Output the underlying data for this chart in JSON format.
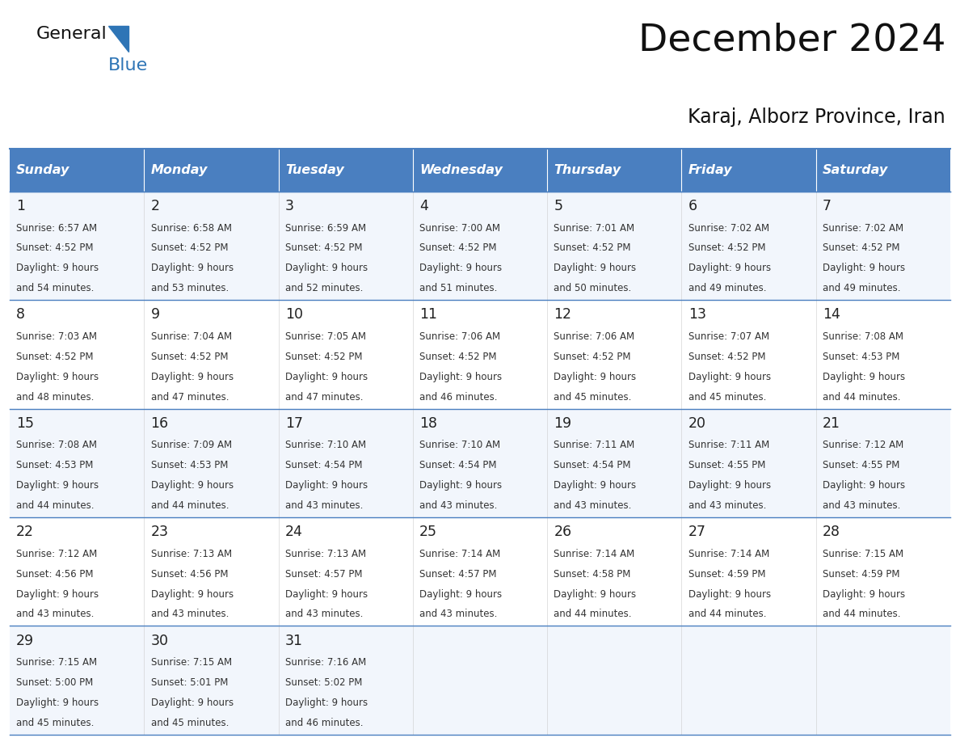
{
  "title": "December 2024",
  "subtitle": "Karaj, Alborz Province, Iran",
  "days_of_week": [
    "Sunday",
    "Monday",
    "Tuesday",
    "Wednesday",
    "Thursday",
    "Friday",
    "Saturday"
  ],
  "header_bg_color": "#4A7FC0",
  "header_text_color": "#FFFFFF",
  "cell_bg_light": "#F2F6FC",
  "cell_bg_white": "#FFFFFF",
  "date_text_color": "#222222",
  "info_text_color": "#333333",
  "border_color": "#4A7FC0",
  "title_color": "#111111",
  "subtitle_color": "#111111",
  "logo_general_color": "#111111",
  "logo_blue_color": "#2E75B6",
  "weeks": [
    [
      {
        "day": 1,
        "sunrise": "6:57 AM",
        "sunset": "4:52 PM",
        "daylight_line1": "Daylight: 9 hours",
        "daylight_line2": "and 54 minutes."
      },
      {
        "day": 2,
        "sunrise": "6:58 AM",
        "sunset": "4:52 PM",
        "daylight_line1": "Daylight: 9 hours",
        "daylight_line2": "and 53 minutes."
      },
      {
        "day": 3,
        "sunrise": "6:59 AM",
        "sunset": "4:52 PM",
        "daylight_line1": "Daylight: 9 hours",
        "daylight_line2": "and 52 minutes."
      },
      {
        "day": 4,
        "sunrise": "7:00 AM",
        "sunset": "4:52 PM",
        "daylight_line1": "Daylight: 9 hours",
        "daylight_line2": "and 51 minutes."
      },
      {
        "day": 5,
        "sunrise": "7:01 AM",
        "sunset": "4:52 PM",
        "daylight_line1": "Daylight: 9 hours",
        "daylight_line2": "and 50 minutes."
      },
      {
        "day": 6,
        "sunrise": "7:02 AM",
        "sunset": "4:52 PM",
        "daylight_line1": "Daylight: 9 hours",
        "daylight_line2": "and 49 minutes."
      },
      {
        "day": 7,
        "sunrise": "7:02 AM",
        "sunset": "4:52 PM",
        "daylight_line1": "Daylight: 9 hours",
        "daylight_line2": "and 49 minutes."
      }
    ],
    [
      {
        "day": 8,
        "sunrise": "7:03 AM",
        "sunset": "4:52 PM",
        "daylight_line1": "Daylight: 9 hours",
        "daylight_line2": "and 48 minutes."
      },
      {
        "day": 9,
        "sunrise": "7:04 AM",
        "sunset": "4:52 PM",
        "daylight_line1": "Daylight: 9 hours",
        "daylight_line2": "and 47 minutes."
      },
      {
        "day": 10,
        "sunrise": "7:05 AM",
        "sunset": "4:52 PM",
        "daylight_line1": "Daylight: 9 hours",
        "daylight_line2": "and 47 minutes."
      },
      {
        "day": 11,
        "sunrise": "7:06 AM",
        "sunset": "4:52 PM",
        "daylight_line1": "Daylight: 9 hours",
        "daylight_line2": "and 46 minutes."
      },
      {
        "day": 12,
        "sunrise": "7:06 AM",
        "sunset": "4:52 PM",
        "daylight_line1": "Daylight: 9 hours",
        "daylight_line2": "and 45 minutes."
      },
      {
        "day": 13,
        "sunrise": "7:07 AM",
        "sunset": "4:52 PM",
        "daylight_line1": "Daylight: 9 hours",
        "daylight_line2": "and 45 minutes."
      },
      {
        "day": 14,
        "sunrise": "7:08 AM",
        "sunset": "4:53 PM",
        "daylight_line1": "Daylight: 9 hours",
        "daylight_line2": "and 44 minutes."
      }
    ],
    [
      {
        "day": 15,
        "sunrise": "7:08 AM",
        "sunset": "4:53 PM",
        "daylight_line1": "Daylight: 9 hours",
        "daylight_line2": "and 44 minutes."
      },
      {
        "day": 16,
        "sunrise": "7:09 AM",
        "sunset": "4:53 PM",
        "daylight_line1": "Daylight: 9 hours",
        "daylight_line2": "and 44 minutes."
      },
      {
        "day": 17,
        "sunrise": "7:10 AM",
        "sunset": "4:54 PM",
        "daylight_line1": "Daylight: 9 hours",
        "daylight_line2": "and 43 minutes."
      },
      {
        "day": 18,
        "sunrise": "7:10 AM",
        "sunset": "4:54 PM",
        "daylight_line1": "Daylight: 9 hours",
        "daylight_line2": "and 43 minutes."
      },
      {
        "day": 19,
        "sunrise": "7:11 AM",
        "sunset": "4:54 PM",
        "daylight_line1": "Daylight: 9 hours",
        "daylight_line2": "and 43 minutes."
      },
      {
        "day": 20,
        "sunrise": "7:11 AM",
        "sunset": "4:55 PM",
        "daylight_line1": "Daylight: 9 hours",
        "daylight_line2": "and 43 minutes."
      },
      {
        "day": 21,
        "sunrise": "7:12 AM",
        "sunset": "4:55 PM",
        "daylight_line1": "Daylight: 9 hours",
        "daylight_line2": "and 43 minutes."
      }
    ],
    [
      {
        "day": 22,
        "sunrise": "7:12 AM",
        "sunset": "4:56 PM",
        "daylight_line1": "Daylight: 9 hours",
        "daylight_line2": "and 43 minutes."
      },
      {
        "day": 23,
        "sunrise": "7:13 AM",
        "sunset": "4:56 PM",
        "daylight_line1": "Daylight: 9 hours",
        "daylight_line2": "and 43 minutes."
      },
      {
        "day": 24,
        "sunrise": "7:13 AM",
        "sunset": "4:57 PM",
        "daylight_line1": "Daylight: 9 hours",
        "daylight_line2": "and 43 minutes."
      },
      {
        "day": 25,
        "sunrise": "7:14 AM",
        "sunset": "4:57 PM",
        "daylight_line1": "Daylight: 9 hours",
        "daylight_line2": "and 43 minutes."
      },
      {
        "day": 26,
        "sunrise": "7:14 AM",
        "sunset": "4:58 PM",
        "daylight_line1": "Daylight: 9 hours",
        "daylight_line2": "and 44 minutes."
      },
      {
        "day": 27,
        "sunrise": "7:14 AM",
        "sunset": "4:59 PM",
        "daylight_line1": "Daylight: 9 hours",
        "daylight_line2": "and 44 minutes."
      },
      {
        "day": 28,
        "sunrise": "7:15 AM",
        "sunset": "4:59 PM",
        "daylight_line1": "Daylight: 9 hours",
        "daylight_line2": "and 44 minutes."
      }
    ],
    [
      {
        "day": 29,
        "sunrise": "7:15 AM",
        "sunset": "5:00 PM",
        "daylight_line1": "Daylight: 9 hours",
        "daylight_line2": "and 45 minutes."
      },
      {
        "day": 30,
        "sunrise": "7:15 AM",
        "sunset": "5:01 PM",
        "daylight_line1": "Daylight: 9 hours",
        "daylight_line2": "and 45 minutes."
      },
      {
        "day": 31,
        "sunrise": "7:16 AM",
        "sunset": "5:02 PM",
        "daylight_line1": "Daylight: 9 hours",
        "daylight_line2": "and 46 minutes."
      },
      null,
      null,
      null,
      null
    ]
  ]
}
